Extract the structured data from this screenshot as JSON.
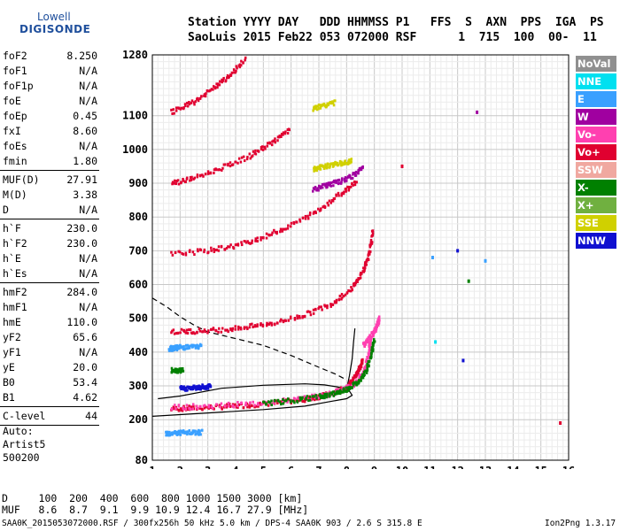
{
  "logo": {
    "line1": "Lowell",
    "line2": "DIGISONDE"
  },
  "header": {
    "line1": "Station YYYY DAY   DDD HHMMSS P1   FFS  S  AXN  PPS  IGA  PS",
    "line2": "SaoLuis 2015 Feb22 053 072000 RSF      1  715  100  00-  11"
  },
  "params": [
    [
      {
        "k": "foF2",
        "v": "8.250"
      },
      {
        "k": "foF1",
        "v": "N/A"
      },
      {
        "k": "foF1p",
        "v": "N/A"
      },
      {
        "k": "foE",
        "v": "N/A"
      },
      {
        "k": "foEp",
        "v": "0.45"
      },
      {
        "k": "fxI",
        "v": "8.60"
      },
      {
        "k": "foEs",
        "v": "N/A"
      },
      {
        "k": "fmin",
        "v": "1.80"
      }
    ],
    [
      {
        "k": "MUF(D)",
        "v": "27.91"
      },
      {
        "k": "M(D)",
        "v": "3.38"
      },
      {
        "k": "D",
        "v": "N/A"
      }
    ],
    [
      {
        "k": "h`F",
        "v": "230.0"
      },
      {
        "k": "h`F2",
        "v": "230.0"
      },
      {
        "k": "h`E",
        "v": "N/A"
      },
      {
        "k": "h`Es",
        "v": "N/A"
      }
    ],
    [
      {
        "k": "hmF2",
        "v": "284.0"
      },
      {
        "k": "hmF1",
        "v": "N/A"
      },
      {
        "k": "hmE",
        "v": "110.0"
      },
      {
        "k": "yF2",
        "v": "65.6"
      },
      {
        "k": "yF1",
        "v": "N/A"
      },
      {
        "k": "yE",
        "v": "20.0"
      },
      {
        "k": "B0",
        "v": "53.4"
      },
      {
        "k": "B1",
        "v": "4.62"
      }
    ],
    [
      {
        "k": "C-level",
        "v": "44"
      }
    ]
  ],
  "auto": {
    "line1": "Auto:",
    "line2": "Artist5",
    "line3": "500200"
  },
  "legend": [
    {
      "label": "NoVal",
      "color": "#909090"
    },
    {
      "label": "NNE",
      "color": "#00e0f0"
    },
    {
      "label": "E",
      "color": "#3aa0ff"
    },
    {
      "label": "W",
      "color": "#a000a0"
    },
    {
      "label": "Vo-",
      "color": "#ff40b0"
    },
    {
      "label": "Vo+",
      "color": "#e00030"
    },
    {
      "label": "SSW",
      "color": "#f0a8a0"
    },
    {
      "label": "X-",
      "color": "#008000"
    },
    {
      "label": "X+",
      "color": "#70b040"
    },
    {
      "label": "SSE",
      "color": "#d0d000"
    },
    {
      "label": "NNW",
      "color": "#1010d0"
    }
  ],
  "bottom": {
    "line1": "D     100  200  400  600  800 1000 1500 3000 [km]",
    "line2": "MUF   8.6  8.7  9.1  9.9 10.9 12.4 16.7 27.9 [MHz]"
  },
  "footer": "SAA0K_2015053072000.RSF / 300fx256h 50 kHz 5.0 km / DPS-4 SAA0K 903 / 2.6 S 315.8 E",
  "version": "Ion2Png 1.3.17",
  "chart_data": {
    "type": "scatter",
    "x_axis": {
      "range": [
        1,
        16
      ],
      "ticks": [
        1,
        2,
        3,
        4,
        5,
        6,
        7,
        8,
        9,
        10,
        11,
        12,
        13,
        14,
        15,
        16
      ]
    },
    "y_axis": {
      "range": [
        80,
        1280
      ],
      "ticks": [
        80,
        200,
        300,
        400,
        500,
        600,
        700,
        800,
        900,
        1000,
        1100,
        1280
      ]
    },
    "grid": true,
    "traces": [
      {
        "color": "#e00030",
        "points": [
          [
            1.7,
            232
          ],
          [
            2.5,
            234
          ],
          [
            3.5,
            238
          ],
          [
            4.5,
            243
          ],
          [
            5.5,
            250
          ],
          [
            6.5,
            260
          ],
          [
            7.0,
            268
          ],
          [
            7.5,
            278
          ],
          [
            8.0,
            295
          ],
          [
            8.2,
            315
          ],
          [
            8.4,
            340
          ],
          [
            8.6,
            380
          ]
        ]
      },
      {
        "color": "#ff40b0",
        "points": [
          [
            1.7,
            236
          ],
          [
            3.0,
            240
          ],
          [
            4.5,
            247
          ],
          [
            6.0,
            258
          ],
          [
            7.2,
            272
          ],
          [
            7.8,
            286
          ],
          [
            8.3,
            305
          ],
          [
            8.6,
            340
          ],
          [
            8.8,
            390
          ],
          [
            8.85,
            440
          ]
        ]
      },
      {
        "color": "#008000",
        "points": [
          [
            5.0,
            248
          ],
          [
            6.0,
            256
          ],
          [
            7.0,
            268
          ],
          [
            7.5,
            276
          ],
          [
            8.0,
            290
          ],
          [
            8.4,
            310
          ],
          [
            8.7,
            345
          ],
          [
            8.9,
            395
          ],
          [
            9.0,
            440
          ]
        ]
      },
      {
        "color": "#e00030",
        "points": [
          [
            1.7,
            460
          ],
          [
            2.5,
            462
          ],
          [
            3.5,
            466
          ],
          [
            4.5,
            475
          ],
          [
            5.5,
            488
          ],
          [
            6.5,
            510
          ],
          [
            7.5,
            545
          ],
          [
            8.2,
            590
          ],
          [
            8.6,
            640
          ],
          [
            8.8,
            690
          ],
          [
            8.95,
            760
          ]
        ]
      },
      {
        "color": "#e00030",
        "points": [
          [
            1.7,
            690
          ],
          [
            3.0,
            700
          ],
          [
            4.0,
            715
          ],
          [
            5.0,
            740
          ],
          [
            6.0,
            775
          ],
          [
            7.0,
            820
          ],
          [
            7.8,
            870
          ],
          [
            8.4,
            910
          ]
        ]
      },
      {
        "color": "#e00030",
        "points": [
          [
            1.7,
            900
          ],
          [
            2.5,
            915
          ],
          [
            3.5,
            945
          ],
          [
            4.5,
            980
          ],
          [
            5.3,
            1020
          ],
          [
            6.0,
            1060
          ]
        ]
      },
      {
        "color": "#e00030",
        "points": [
          [
            1.7,
            1110
          ],
          [
            2.5,
            1140
          ],
          [
            3.2,
            1180
          ],
          [
            3.8,
            1220
          ],
          [
            4.4,
            1270
          ]
        ]
      },
      {
        "color": "#ff40b0",
        "points": [
          [
            8.6,
            420
          ],
          [
            8.8,
            440
          ],
          [
            9.0,
            460
          ],
          [
            9.1,
            480
          ],
          [
            9.2,
            500
          ]
        ]
      },
      {
        "color": "#3aa0ff",
        "points": [
          [
            1.6,
            410
          ],
          [
            1.8,
            412
          ],
          [
            2.0,
            414
          ],
          [
            2.4,
            415
          ],
          [
            2.8,
            416
          ]
        ]
      },
      {
        "color": "#3aa0ff",
        "points": [
          [
            1.5,
            160
          ],
          [
            1.7,
            160
          ],
          [
            2.0,
            161
          ],
          [
            2.4,
            161
          ],
          [
            2.8,
            162
          ]
        ]
      },
      {
        "color": "#1010d0",
        "points": [
          [
            2.0,
            292
          ],
          [
            2.3,
            293
          ],
          [
            2.6,
            295
          ],
          [
            2.9,
            297
          ],
          [
            3.1,
            298
          ]
        ]
      },
      {
        "color": "#008000",
        "points": [
          [
            1.7,
            345
          ],
          [
            1.9,
            346
          ],
          [
            2.1,
            347
          ]
        ]
      },
      {
        "color": "#d0d000",
        "points": [
          [
            6.8,
            940
          ],
          [
            7.1,
            948
          ],
          [
            7.5,
            955
          ],
          [
            7.9,
            960
          ],
          [
            8.2,
            966
          ]
        ]
      },
      {
        "color": "#d0d000",
        "points": [
          [
            6.8,
            1120
          ],
          [
            7.2,
            1130
          ],
          [
            7.6,
            1140
          ]
        ]
      },
      {
        "color": "#a000a0",
        "points": [
          [
            6.8,
            880
          ],
          [
            7.3,
            895
          ],
          [
            7.8,
            905
          ],
          [
            8.3,
            925
          ],
          [
            8.6,
            950
          ]
        ]
      }
    ],
    "model_curves": [
      {
        "style": "solid",
        "points": [
          [
            1.0,
            210
          ],
          [
            3.0,
            220
          ],
          [
            5.0,
            230
          ],
          [
            6.5,
            240
          ],
          [
            7.5,
            255
          ],
          [
            8.0,
            262
          ],
          [
            8.2,
            272
          ],
          [
            8.1,
            285
          ],
          [
            7.8,
            295
          ],
          [
            7.2,
            303
          ],
          [
            6.5,
            306
          ],
          [
            5.0,
            302
          ],
          [
            3.5,
            293
          ],
          [
            2.0,
            270
          ],
          [
            1.2,
            262
          ]
        ]
      },
      {
        "style": "solid",
        "points": [
          [
            8.0,
            290
          ],
          [
            8.1,
            330
          ],
          [
            8.2,
            380
          ],
          [
            8.25,
            430
          ],
          [
            8.3,
            470
          ]
        ]
      },
      {
        "style": "dashed",
        "points": [
          [
            1.0,
            560
          ],
          [
            1.5,
            535
          ],
          [
            2.0,
            505
          ],
          [
            2.5,
            480
          ],
          [
            3.0,
            460
          ],
          [
            4.0,
            440
          ],
          [
            5.0,
            420
          ],
          [
            6.0,
            390
          ],
          [
            7.0,
            355
          ],
          [
            7.6,
            335
          ],
          [
            8.0,
            318
          ]
        ]
      }
    ],
    "isolated": [
      {
        "x": 10.0,
        "y": 950,
        "color": "#e00030"
      },
      {
        "x": 12.7,
        "y": 1110,
        "color": "#a000a0"
      },
      {
        "x": 12.2,
        "y": 375,
        "color": "#1010d0"
      },
      {
        "x": 13.0,
        "y": 670,
        "color": "#3aa0ff"
      },
      {
        "x": 15.7,
        "y": 190,
        "color": "#e00030"
      },
      {
        "x": 11.1,
        "y": 680,
        "color": "#3aa0ff"
      },
      {
        "x": 11.2,
        "y": 430,
        "color": "#00e0f0"
      },
      {
        "x": 12.4,
        "y": 610,
        "color": "#008000"
      },
      {
        "x": 12.0,
        "y": 700,
        "color": "#1010d0"
      }
    ]
  }
}
